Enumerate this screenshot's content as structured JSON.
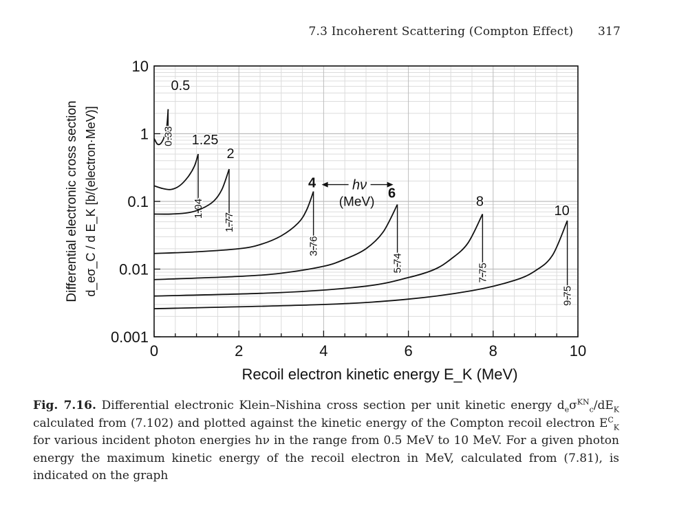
{
  "running_head": {
    "section": "7.3 Incoherent Scattering (Compton Effect)",
    "page_number": "317"
  },
  "chart_data": {
    "type": "line",
    "yscale": "log",
    "xlim": [
      0,
      10
    ],
    "ylim": [
      0.001,
      10
    ],
    "grid": true,
    "legend": "none",
    "xlabel": "Recoil electron kinetic energy E_K (MeV)",
    "ylabel_line1": "Differential electronic cross section",
    "ylabel_line2": "d_eσ_C / d E_K  [b/(electron·MeV)]",
    "x_tick_labels": [
      "0",
      "2",
      "4",
      "6",
      "8",
      "10"
    ],
    "y_tick_labels": [
      "0.001",
      "0.01",
      "0.1",
      "1",
      "10"
    ],
    "y_tick_values": [
      0.001,
      0.01,
      0.1,
      1,
      10
    ],
    "annotation_hv": "hν",
    "annotation_unit": "(MeV)",
    "series": [
      {
        "energy_label": "0.5",
        "emax_label": "0.33",
        "x": [
          0,
          0.08,
          0.16,
          0.24,
          0.3,
          0.331
        ],
        "y": [
          0.85,
          0.7,
          0.72,
          0.9,
          1.3,
          2.3
        ]
      },
      {
        "energy_label": "1.25",
        "emax_label": "1.04",
        "x": [
          0,
          0.2,
          0.4,
          0.6,
          0.8,
          0.95,
          1.04
        ],
        "y": [
          0.17,
          0.155,
          0.15,
          0.17,
          0.23,
          0.33,
          0.5
        ]
      },
      {
        "energy_label": "2",
        "emax_label": "1.77",
        "x": [
          0,
          0.4,
          0.8,
          1.1,
          1.4,
          1.6,
          1.77
        ],
        "y": [
          0.065,
          0.065,
          0.068,
          0.077,
          0.1,
          0.15,
          0.3
        ]
      },
      {
        "energy_label": "4",
        "emax_label": "3.76",
        "x": [
          0,
          1,
          2,
          2.5,
          3,
          3.4,
          3.6,
          3.76
        ],
        "y": [
          0.017,
          0.018,
          0.02,
          0.023,
          0.031,
          0.048,
          0.075,
          0.14
        ]
      },
      {
        "energy_label": "6",
        "emax_label": "5.74",
        "x": [
          0,
          2,
          3,
          4,
          4.5,
          5,
          5.4,
          5.74
        ],
        "y": [
          0.007,
          0.0078,
          0.0087,
          0.011,
          0.014,
          0.02,
          0.035,
          0.09
        ]
      },
      {
        "energy_label": "8",
        "emax_label": "7.75",
        "x": [
          0,
          3,
          5,
          6,
          6.6,
          7,
          7.4,
          7.75
        ],
        "y": [
          0.004,
          0.0045,
          0.0056,
          0.0075,
          0.0098,
          0.014,
          0.024,
          0.065
        ]
      },
      {
        "energy_label": "10",
        "emax_label": "9.75",
        "x": [
          0,
          4,
          6,
          7.5,
          8.5,
          9,
          9.4,
          9.75
        ],
        "y": [
          0.0026,
          0.003,
          0.0036,
          0.0048,
          0.0068,
          0.0095,
          0.016,
          0.052
        ]
      }
    ]
  },
  "caption": {
    "label": "Fig. 7.16.",
    "line1": "Differential electronic Klein–Nishina cross section per unit kinetic energy",
    "d_prefix": "d",
    "sub_e": "e",
    "sigma": "σ",
    "sup_KN": "KN",
    "sub_c": "c",
    "dE_part": "/dE",
    "sub_K": "K",
    "line2_rest": "calculated from (7.102) and plotted against the kinetic energy of the",
    "line3_a": "Compton recoil electron E",
    "sup_C": "C",
    "sub_K2": "K",
    "line3_b": "for various incident photon energies hν in the range",
    "line4": "from 0.5 MeV to 10 MeV. For a given photon energy the maximum kinetic energy",
    "line5": "of the recoil electron in MeV, calculated from (7.81), is indicated on the graph"
  },
  "colors": {
    "ink": "#111111",
    "grid": "#bdbdbd",
    "grid_minor": "#dcdcdc"
  }
}
